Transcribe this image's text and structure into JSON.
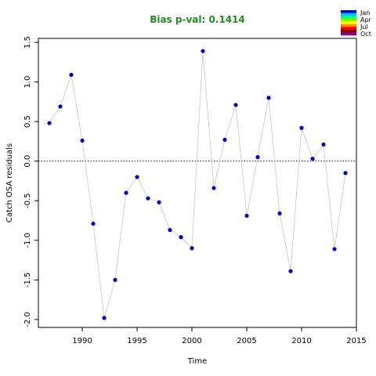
{
  "chart_data": {
    "type": "scatter",
    "title": "Bias p-val: 0.1414",
    "title_color": "#228B22",
    "xlabel": "Time",
    "ylabel": "Catch OSA residuals",
    "xlim": [
      1986,
      2015
    ],
    "ylim": [
      -2.1,
      1.55
    ],
    "xticks": [
      1990,
      1995,
      2000,
      2005,
      2010,
      2015
    ],
    "xtick_labels": [
      "1990",
      "1995",
      "2000",
      "2005",
      "2010",
      "2015"
    ],
    "yticks": [
      -2.0,
      -1.5,
      -1.0,
      -0.5,
      0.0,
      0.5,
      1.0,
      1.5
    ],
    "ytick_labels": [
      "-2.0",
      "-1.5",
      "-1.0",
      "-0.5",
      "0.0",
      "0.5",
      "1.0",
      "1.5"
    ],
    "reference_line": 0.0,
    "point_color": "#0000CD",
    "line_color": "#C8C8C8",
    "series": [
      {
        "x": [
          1987,
          1988,
          1989,
          1990,
          1991,
          1992,
          1993,
          1994,
          1995,
          1996,
          1997,
          1998,
          1999,
          2000,
          2001,
          2002,
          2003,
          2004,
          2005,
          2006,
          2007,
          2008,
          2009,
          2010,
          2011,
          2012,
          2013,
          2014
        ],
        "y": [
          0.48,
          0.69,
          1.09,
          0.26,
          -0.79,
          -1.98,
          -1.5,
          -0.4,
          -0.2,
          -0.47,
          -0.52,
          -0.87,
          -0.96,
          -1.1,
          1.39,
          -0.34,
          0.27,
          0.71,
          -0.69,
          0.05,
          0.8,
          -0.66,
          -1.39,
          0.42,
          0.03,
          0.21,
          -1.11,
          -0.15
        ]
      }
    ],
    "legend": {
      "position": "top-right",
      "labels": [
        "Jan",
        "Apr",
        "Jul",
        "Oct"
      ],
      "colors": [
        "#0000CD",
        "#00BFFF",
        "#00FF7F",
        "#7FFF00",
        "#FFFF00",
        "#FF8C00",
        "#FF0000",
        "#8B0000",
        "#8B008B"
      ]
    }
  }
}
